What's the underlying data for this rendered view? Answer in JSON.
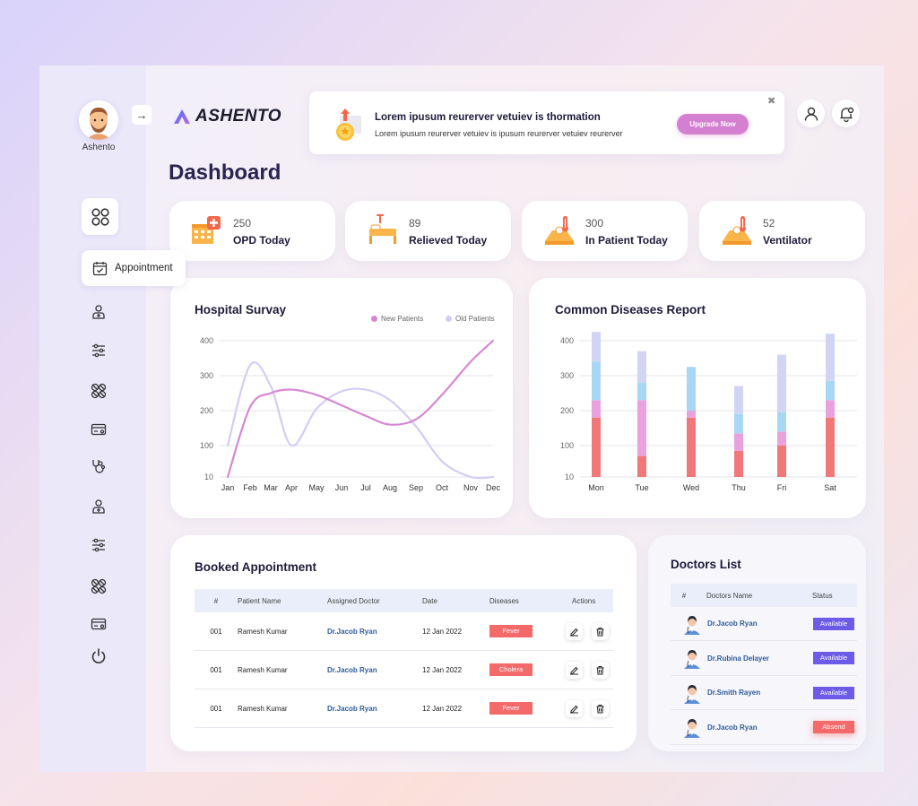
{
  "user": {
    "name": "Ashento"
  },
  "brand": {
    "logo_text": "ASHENTO"
  },
  "banner": {
    "title": "Lorem ipusum reurerver vetuiev is thormation",
    "subtitle": "Lorem ipusum reurerver vetuiev is  ipusum reurerver vetuiev reurerver",
    "button": "Upgrade Now"
  },
  "page_title": "Dashboard",
  "sidebar": {
    "active_item": "Appointment"
  },
  "stats": [
    {
      "value": "250",
      "label": "OPD Today"
    },
    {
      "value": "89",
      "label": "Relieved Today"
    },
    {
      "value": "300",
      "label": "In Patient Today"
    },
    {
      "value": "52",
      "label": "Ventilator"
    }
  ],
  "survey": {
    "title": "Hospital Survay",
    "legend": [
      "New Patients",
      "Old Patients"
    ]
  },
  "diseases": {
    "title": "Common Diseases Report"
  },
  "chart_data": [
    {
      "type": "line",
      "title": "Hospital Survay",
      "x": [
        "Jan",
        "Feb",
        "Mar",
        "Apr",
        "May",
        "Jun",
        "Jul",
        "Aug",
        "Sep",
        "Oct",
        "Nov",
        "Dec"
      ],
      "ylim": [
        10,
        400
      ],
      "y_ticks": [
        10,
        100,
        200,
        300,
        400
      ],
      "grid": true,
      "legend_position": "top-right",
      "series": [
        {
          "name": "New Patients",
          "color": "#d787d2",
          "values": [
            10,
            210,
            250,
            260,
            245,
            215,
            185,
            160,
            175,
            245,
            340,
            400
          ]
        },
        {
          "name": "Old Patients",
          "color": "#d3ccf5",
          "values": [
            100,
            330,
            270,
            100,
            205,
            255,
            260,
            230,
            155,
            55,
            10,
            10
          ]
        }
      ]
    },
    {
      "type": "bar",
      "title": "Common Diseases Report",
      "categories": [
        "Mon",
        "Tue",
        "Wed",
        "Thu",
        "Fri",
        "Sat"
      ],
      "ylim": [
        10,
        400
      ],
      "y_ticks": [
        10,
        100,
        200,
        300,
        400
      ],
      "grid": true,
      "stacked": true,
      "series": [
        {
          "color": "#f17878",
          "values": [
            170,
            60,
            170,
            75,
            90,
            170
          ]
        },
        {
          "color": "#e9a2de",
          "values": [
            50,
            160,
            20,
            50,
            40,
            50
          ]
        },
        {
          "color": "#a8d7f5",
          "values": [
            110,
            50,
            125,
            55,
            55,
            55
          ]
        },
        {
          "color": "#cfd5f2",
          "values": [
            85,
            90,
            0,
            80,
            165,
            135
          ]
        }
      ]
    }
  ],
  "appointments": {
    "title": "Booked Appointment",
    "headers": [
      "#",
      "Patient Name",
      "Assigned Doctor",
      "Date",
      "Diseases",
      "Actions"
    ],
    "rows": [
      {
        "id": "001",
        "patient": "Ramesh Kumar",
        "doctor": "Dr.Jacob Ryan",
        "date": "12 Jan 2022",
        "disease": "Fever"
      },
      {
        "id": "001",
        "patient": "Ramesh Kumar",
        "doctor": "Dr.Jacob Ryan",
        "date": "12 Jan 2022",
        "disease": "Cholera"
      },
      {
        "id": "001",
        "patient": "Ramesh Kumar",
        "doctor": "Dr.Jacob Ryan",
        "date": "12 Jan 2022",
        "disease": "Fever"
      }
    ]
  },
  "doctors": {
    "title": "Doctors List",
    "headers": [
      "#",
      "Doctors  Name",
      "Status"
    ],
    "rows": [
      {
        "name": "Dr.Jacob Ryan",
        "status": "Available",
        "color": "#6b5be6"
      },
      {
        "name": "Dr.Rubina Delayer",
        "status": "Available",
        "color": "#6b5be6"
      },
      {
        "name": "Dr.Smith Rayen",
        "status": "Available",
        "color": "#6b5be6"
      },
      {
        "name": "Dr.Jacob Ryan",
        "status": "Absend",
        "color": "#f46a6a"
      }
    ]
  }
}
